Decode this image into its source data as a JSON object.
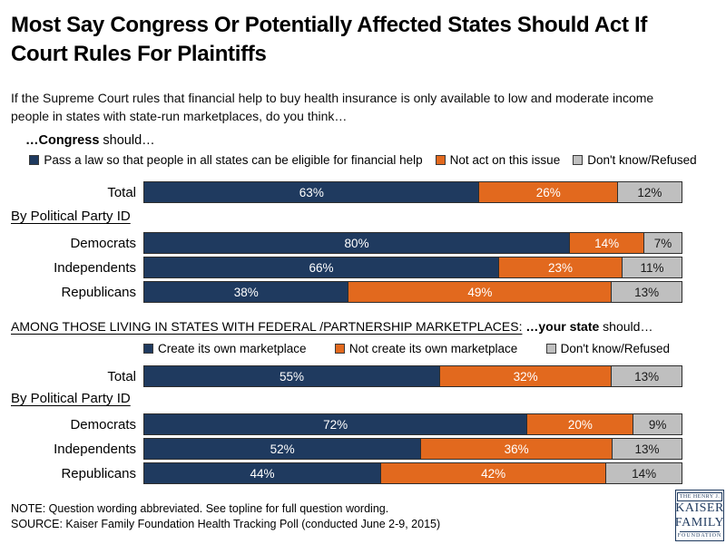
{
  "title": {
    "line1": "Most Say Congress Or Potentially Affected States Should Act If",
    "line2": "Court Rules For Plaintiffs"
  },
  "subtitle": {
    "line1": "If the Supreme Court rules that financial help to buy health insurance is only available to low and moderate income",
    "line2": "people in states with state-run marketplaces, do you think…"
  },
  "colors": {
    "navy": "#1f3a5f",
    "orange": "#e2691e",
    "gray": "#bfbfbf"
  },
  "chart_data": [
    {
      "type": "bar",
      "stacked": true,
      "orientation": "horizontal",
      "value_suffix": "%",
      "intro": {
        "bold": "…Congress",
        "suffix": " should…"
      },
      "series_labels": [
        "Pass a law so that people in all states can be eligible for financial help",
        "Not act on this issue",
        "Don't know/Refused"
      ],
      "series_colors": [
        "#1f3a5f",
        "#e2691e",
        "#bfbfbf"
      ],
      "group_label": "By Political Party ID",
      "categories": [
        "Total",
        "Democrats",
        "Independents",
        "Republicans"
      ],
      "rows": [
        {
          "label": "Total",
          "values": [
            63,
            26,
            12
          ]
        },
        {
          "label": "Democrats",
          "values": [
            80,
            14,
            7
          ]
        },
        {
          "label": "Independents",
          "values": [
            66,
            23,
            11
          ]
        },
        {
          "label": "Republicans",
          "values": [
            38,
            49,
            13
          ]
        }
      ]
    },
    {
      "type": "bar",
      "stacked": true,
      "orientation": "horizontal",
      "value_suffix": "%",
      "heading": "AMONG THOSE LIVING IN STATES WITH FEDERAL /PARTNERSHIP MARKETPLACES:",
      "intro": {
        "bold": " …your state",
        "suffix": " should…"
      },
      "series_labels": [
        "Create its own marketplace",
        "Not create its own marketplace",
        "Don't know/Refused"
      ],
      "series_colors": [
        "#1f3a5f",
        "#e2691e",
        "#bfbfbf"
      ],
      "group_label": "By Political Party ID",
      "categories": [
        "Total",
        "Democrats",
        "Independents",
        "Republicans"
      ],
      "rows": [
        {
          "label": "Total",
          "values": [
            55,
            32,
            13
          ]
        },
        {
          "label": "Democrats",
          "values": [
            72,
            20,
            9
          ]
        },
        {
          "label": "Independents",
          "values": [
            52,
            36,
            13
          ]
        },
        {
          "label": "Republicans",
          "values": [
            44,
            42,
            14
          ]
        }
      ]
    }
  ],
  "footer": {
    "note": "NOTE: Question wording abbreviated.  See topline for full question wording.",
    "source": "SOURCE: Kaiser Family Foundation Health Tracking Poll (conducted June 2-9, 2015)"
  },
  "logo": {
    "line1": "THE HENRY J.",
    "line2": "KAISER",
    "line3": "FAMILY",
    "line4": "FOUNDATION"
  }
}
